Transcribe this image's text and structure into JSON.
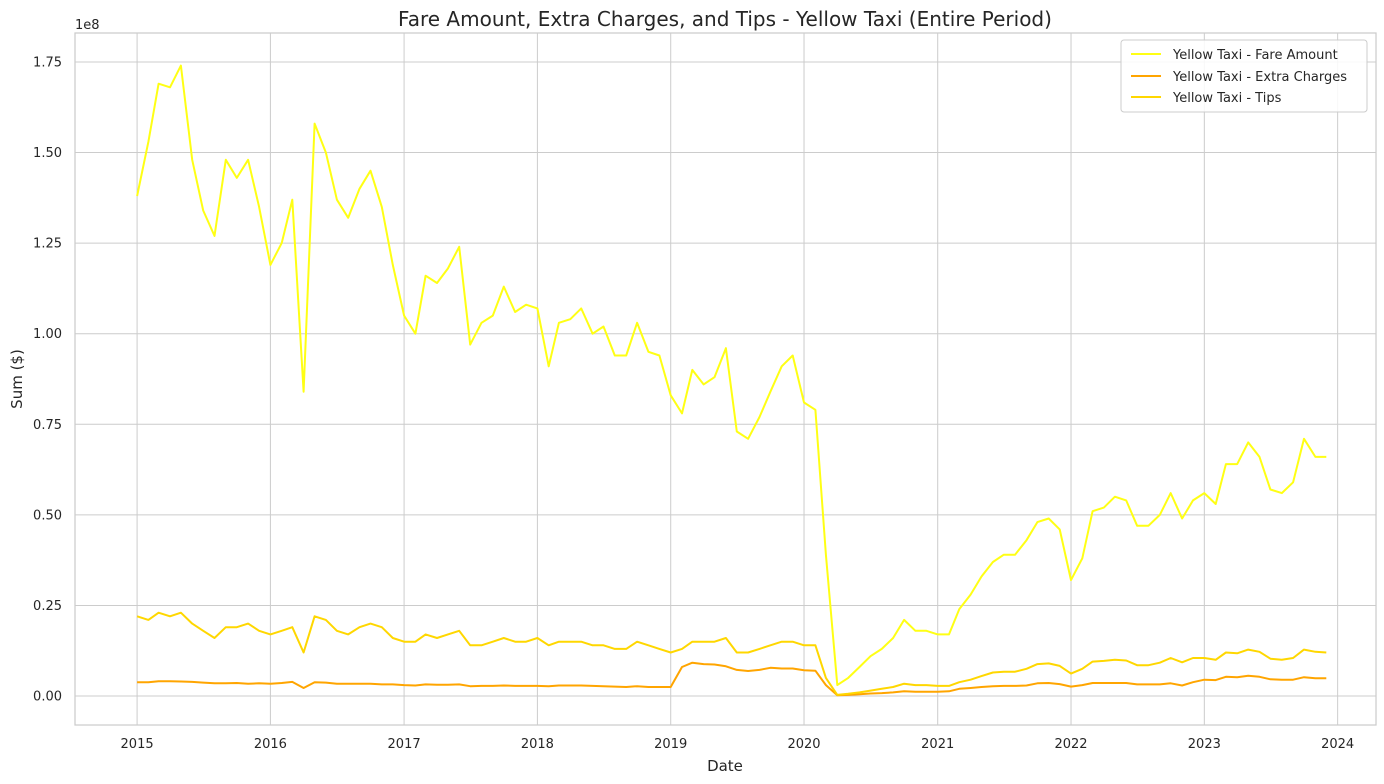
{
  "chart_data": {
    "type": "line",
    "title": "Fare Amount, Extra Charges, and Tips - Yellow Taxi (Entire Period)",
    "xlabel": "Date",
    "ylabel": "Sum ($)",
    "y_offset_label": "1e8",
    "xlim": [
      "2014-07-15",
      "2024-04-15"
    ],
    "ylim": [
      -0.08,
      1.83
    ],
    "y_scale": 100000000,
    "x_ticks": [
      "2015",
      "2016",
      "2017",
      "2018",
      "2019",
      "2020",
      "2021",
      "2022",
      "2023",
      "2024"
    ],
    "y_ticks": [
      "0.00",
      "0.25",
      "0.50",
      "0.75",
      "1.00",
      "1.25",
      "1.50",
      "1.75"
    ],
    "grid": true,
    "legend_position": "top-right",
    "x_start": "2015-01",
    "x_step": "1 month",
    "series": [
      {
        "name": "Yellow Taxi - Fare Amount",
        "color": "#ffff14",
        "values": [
          1.38,
          1.53,
          1.69,
          1.68,
          1.74,
          1.48,
          1.34,
          1.27,
          1.48,
          1.43,
          1.48,
          1.35,
          1.19,
          1.25,
          1.37,
          0.84,
          1.58,
          1.5,
          1.37,
          1.32,
          1.4,
          1.45,
          1.35,
          1.19,
          1.05,
          1.0,
          1.16,
          1.14,
          1.18,
          1.24,
          0.97,
          1.03,
          1.05,
          1.13,
          1.06,
          1.08,
          1.07,
          0.91,
          1.03,
          1.04,
          1.07,
          1.0,
          1.02,
          0.94,
          0.94,
          1.03,
          0.95,
          0.94,
          0.83,
          0.78,
          0.9,
          0.86,
          0.88,
          0.96,
          0.73,
          0.71,
          0.77,
          0.84,
          0.91,
          0.94,
          0.81,
          0.79,
          0.39,
          0.03,
          0.05,
          0.08,
          0.11,
          0.13,
          0.16,
          0.21,
          0.18,
          0.18,
          0.17,
          0.17,
          0.24,
          0.28,
          0.33,
          0.37,
          0.39,
          0.39,
          0.43,
          0.48,
          0.49,
          0.46,
          0.32,
          0.38,
          0.51,
          0.52,
          0.55,
          0.54,
          0.47,
          0.47,
          0.5,
          0.56,
          0.49,
          0.54,
          0.56,
          0.53,
          0.64,
          0.64,
          0.7,
          0.66,
          0.57,
          0.56,
          0.59,
          0.71,
          0.66,
          0.66
        ]
      },
      {
        "name": "Yellow Taxi - Extra Charges",
        "color": "#ffa500",
        "values": [
          0.038,
          0.038,
          0.041,
          0.041,
          0.04,
          0.039,
          0.037,
          0.035,
          0.035,
          0.036,
          0.034,
          0.035,
          0.034,
          0.036,
          0.039,
          0.022,
          0.038,
          0.037,
          0.034,
          0.034,
          0.034,
          0.034,
          0.032,
          0.032,
          0.03,
          0.029,
          0.032,
          0.031,
          0.031,
          0.032,
          0.027,
          0.028,
          0.028,
          0.029,
          0.028,
          0.028,
          0.028,
          0.027,
          0.029,
          0.029,
          0.029,
          0.028,
          0.027,
          0.026,
          0.025,
          0.027,
          0.025,
          0.025,
          0.025,
          0.08,
          0.092,
          0.088,
          0.087,
          0.082,
          0.072,
          0.069,
          0.072,
          0.078,
          0.076,
          0.076,
          0.071,
          0.07,
          0.03,
          0.002,
          0.003,
          0.005,
          0.007,
          0.008,
          0.01,
          0.013,
          0.012,
          0.012,
          0.012,
          0.013,
          0.02,
          0.022,
          0.025,
          0.027,
          0.028,
          0.028,
          0.029,
          0.035,
          0.036,
          0.033,
          0.026,
          0.03,
          0.036,
          0.036,
          0.036,
          0.036,
          0.032,
          0.032,
          0.032,
          0.035,
          0.029,
          0.038,
          0.045,
          0.044,
          0.053,
          0.052,
          0.056,
          0.053,
          0.046,
          0.045,
          0.045,
          0.052,
          0.049,
          0.049
        ]
      },
      {
        "name": "Yellow Taxi - Tips",
        "color": "#ffd700",
        "values": [
          0.22,
          0.21,
          0.23,
          0.22,
          0.23,
          0.2,
          0.18,
          0.16,
          0.19,
          0.19,
          0.2,
          0.18,
          0.17,
          0.18,
          0.19,
          0.12,
          0.22,
          0.21,
          0.18,
          0.17,
          0.19,
          0.2,
          0.19,
          0.16,
          0.15,
          0.15,
          0.17,
          0.16,
          0.17,
          0.18,
          0.14,
          0.14,
          0.15,
          0.16,
          0.15,
          0.15,
          0.16,
          0.14,
          0.15,
          0.15,
          0.15,
          0.14,
          0.14,
          0.13,
          0.13,
          0.15,
          0.14,
          0.13,
          0.12,
          0.13,
          0.15,
          0.15,
          0.15,
          0.16,
          0.12,
          0.12,
          0.13,
          0.14,
          0.15,
          0.15,
          0.14,
          0.14,
          0.05,
          0.003,
          0.006,
          0.01,
          0.015,
          0.02,
          0.025,
          0.034,
          0.03,
          0.03,
          0.028,
          0.028,
          0.038,
          0.045,
          0.055,
          0.065,
          0.067,
          0.067,
          0.075,
          0.088,
          0.09,
          0.083,
          0.062,
          0.075,
          0.095,
          0.097,
          0.1,
          0.098,
          0.085,
          0.085,
          0.092,
          0.105,
          0.093,
          0.105,
          0.105,
          0.1,
          0.12,
          0.118,
          0.128,
          0.122,
          0.103,
          0.1,
          0.105,
          0.128,
          0.122,
          0.12
        ]
      }
    ]
  }
}
